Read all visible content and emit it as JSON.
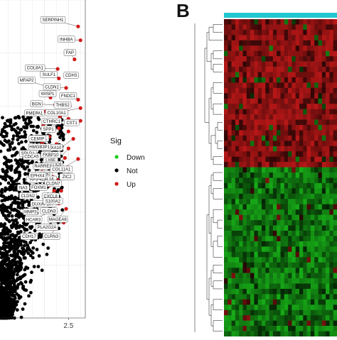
{
  "colors": {
    "up": "#d11a1a",
    "not": "#000000",
    "down": "#22cc22",
    "grid": "#ebebeb",
    "label_box_stroke": "#555555",
    "heatmap_bar": "#22c7cf",
    "heatmap_high": "#c21818",
    "heatmap_low": "#18b418"
  },
  "panel_b_letter": "B",
  "chart_data": [
    {
      "type": "scatter",
      "name": "volcano",
      "xlabel": "",
      "ylabel": "",
      "title": "",
      "x_ticks": [
        {
          "value": 2.5,
          "label": "2.5"
        }
      ],
      "xlim": [
        -0.35,
        3.2
      ],
      "ylim": [
        0,
        30
      ],
      "grid": true,
      "legend": {
        "title": "Sig",
        "position": "right",
        "entries": [
          {
            "label": "Down",
            "color": "#22cc22"
          },
          {
            "label": "Not",
            "color": "#000000"
          },
          {
            "label": "Up",
            "color": "#d11a1a"
          }
        ]
      },
      "labeled_genes": [
        {
          "gene": "SERPINH1",
          "x": 2.9,
          "y": 27.5
        },
        {
          "gene": "INHBA",
          "x": 3.0,
          "y": 26.2
        },
        {
          "gene": "FAP",
          "x": 2.75,
          "y": 24.4
        },
        {
          "gene": "COL8A1",
          "x": 2.05,
          "y": 23.5
        },
        {
          "gene": "SULF1",
          "x": 2.1,
          "y": 22.6
        },
        {
          "gene": "CDH3",
          "x": 2.85,
          "y": 22.8
        },
        {
          "gene": "MFAP2",
          "x": 1.65,
          "y": 21.8
        },
        {
          "gene": "CLDN1",
          "x": 2.4,
          "y": 21.7
        },
        {
          "gene": "WISP1",
          "x": 1.75,
          "y": 20.8
        },
        {
          "gene": "BGN",
          "x": 1.95,
          "y": 20.1
        },
        {
          "gene": "FNDC1",
          "x": 2.9,
          "y": 20.6
        },
        {
          "gene": "THBS2",
          "x": 2.55,
          "y": 20.0
        },
        {
          "gene": "COL10A1",
          "x": 3.0,
          "y": 19.8
        },
        {
          "gene": "PMEPA1",
          "x": 1.55,
          "y": 19.5
        },
        {
          "gene": "CTHRC1",
          "x": 2.15,
          "y": 19.0
        },
        {
          "gene": "SPP1",
          "x": 2.5,
          "y": 18.8
        },
        {
          "gene": "CST1",
          "x": 3.0,
          "y": 18.6
        },
        {
          "gene": "BYSL",
          "x": 1.45,
          "y": 18.2
        },
        {
          "gene": "CEMIP",
          "x": 2.1,
          "y": 17.9
        },
        {
          "gene": "HOXA10",
          "x": 2.5,
          "y": 17.6
        },
        {
          "gene": "HMGB3P1",
          "x": 1.7,
          "y": 17.1
        },
        {
          "gene": "FKBP10",
          "x": 2.7,
          "y": 16.9
        },
        {
          "gene": "SPLD1",
          "x": 1.4,
          "y": 16.5
        },
        {
          "gene": "LY6E",
          "x": 2.0,
          "y": 16.4
        },
        {
          "gene": "CDCA5",
          "x": 1.85,
          "y": 16.2
        },
        {
          "gene": "HOXC6",
          "x": 2.5,
          "y": 16.0
        },
        {
          "gene": "RARRES1",
          "x": 1.9,
          "y": 15.3
        },
        {
          "gene": "KRT80",
          "x": 2.35,
          "y": 15.1
        },
        {
          "gene": "COL11A1",
          "x": 2.9,
          "y": 15.0
        },
        {
          "gene": "RP3-428L16",
          "x": 1.95,
          "y": 14.6
        },
        {
          "gene": "EPHX4",
          "x": 2.1,
          "y": 14.4
        },
        {
          "gene": "CLDN7",
          "x": 2.45,
          "y": 14.2
        },
        {
          "gene": "ZIC2",
          "x": 2.5,
          "y": 13.5
        },
        {
          "gene": "NA3",
          "x": 1.4,
          "y": 13.8
        },
        {
          "gene": "FOXM1",
          "x": 1.85,
          "y": 13.3
        },
        {
          "gene": "CXCL8",
          "x": 2.05,
          "y": 13.0
        },
        {
          "gene": "CLDN2",
          "x": 1.7,
          "y": 12.5
        },
        {
          "gene": "DUXAP10",
          "x": 1.9,
          "y": 12.0
        },
        {
          "gene": "S100A2",
          "x": 2.2,
          "y": 12.0
        },
        {
          "gene": "MMP3",
          "x": 1.75,
          "y": 11.0
        },
        {
          "gene": "CLDN3",
          "x": 2.1,
          "y": 10.8
        },
        {
          "gene": "MAGEA6",
          "x": 2.4,
          "y": 10.3
        },
        {
          "gene": "HCAR3",
          "x": 1.75,
          "y": 10.0
        },
        {
          "gene": "PLA2G2A",
          "x": 2.3,
          "y": 9.0
        },
        {
          "gene": "CLRN3",
          "x": 1.9,
          "y": 8.4
        },
        {
          "gene": "CDH17",
          "x": 1.75,
          "y": 7.6
        }
      ]
    },
    {
      "type": "heatmap",
      "name": "expression-heatmap",
      "title": "",
      "top_group": "red block (upper rows) / green block (lower rows)",
      "rows": 60,
      "cols": 30,
      "split_row_fraction": 0.5
    }
  ]
}
